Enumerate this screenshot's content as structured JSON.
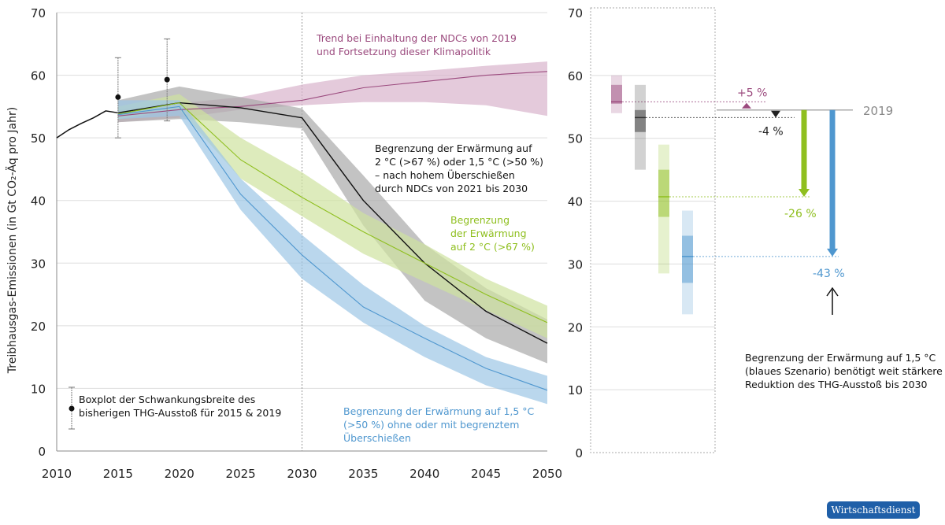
{
  "chart_data": [
    {
      "type": "line",
      "ylabel": "Treibhausgas-Emissionen (in Gt CO₂-Äq pro Jahr)",
      "xlim": [
        2010,
        2050
      ],
      "ylim": [
        0,
        70
      ],
      "xticks": [
        2010,
        2015,
        2020,
        2025,
        2030,
        2035,
        2040,
        2045,
        2050
      ],
      "yticks": [
        0,
        10,
        20,
        30,
        40,
        50,
        60,
        70
      ],
      "grid": "horizontal",
      "vline": 2030,
      "historical": {
        "x": [
          2010,
          2011,
          2012,
          2013,
          2014,
          2015
        ],
        "y": [
          50,
          51.3,
          52.3,
          53.2,
          54.3,
          54.0
        ]
      },
      "series": [
        {
          "key": "ndc",
          "color": "#9b4a7e",
          "band": "#d9b3cc",
          "x": [
            2015,
            2020,
            2025,
            2030,
            2035,
            2040,
            2045,
            2050
          ],
          "median": [
            53.5,
            54.5,
            55,
            56,
            58,
            59,
            60,
            60.6
          ],
          "upper": [
            54.5,
            55.5,
            56.5,
            58.5,
            60,
            60.7,
            61.5,
            62.2
          ],
          "lower": [
            52.5,
            53.2,
            54.5,
            55.2,
            55.7,
            55.7,
            55.2,
            53.5
          ]
        },
        {
          "key": "overshoot",
          "color": "#111111",
          "band": "#a9a9a9",
          "x": [
            2015,
            2020,
            2025,
            2030,
            2035,
            2040,
            2045,
            2050
          ],
          "median": [
            54,
            55.6,
            54.8,
            53.2,
            40,
            30,
            22.3,
            17.2
          ],
          "upper": [
            56,
            58.2,
            56.5,
            54.7,
            44,
            33,
            26,
            21
          ],
          "lower": [
            52.5,
            53,
            52.5,
            51.5,
            36,
            24,
            18,
            14
          ]
        },
        {
          "key": "2c",
          "color": "#8fbf1f",
          "band": "#cfe3a0",
          "x": [
            2015,
            2020,
            2025,
            2030,
            2035,
            2040,
            2045,
            2050
          ],
          "median": [
            53.8,
            55.6,
            46.5,
            40.5,
            35,
            30,
            25,
            20.5
          ],
          "upper": [
            55,
            57,
            50,
            44.5,
            38,
            33,
            27.5,
            23.2
          ],
          "lower": [
            53,
            54.5,
            43.5,
            37.5,
            31.5,
            27,
            22.5,
            18
          ]
        },
        {
          "key": "1_5c",
          "color": "#4f97cf",
          "band": "#9cc6e6",
          "x": [
            2015,
            2020,
            2025,
            2030,
            2035,
            2040,
            2045,
            2050
          ],
          "median": [
            53.7,
            55,
            41,
            31.3,
            23,
            18,
            13.2,
            9.7
          ],
          "upper": [
            56,
            56,
            43.5,
            34.5,
            26.5,
            20,
            15,
            12
          ],
          "lower": [
            53,
            53.5,
            38.5,
            27.5,
            20.5,
            15,
            10.5,
            7.5
          ]
        }
      ],
      "boxplots": [
        {
          "x": 2015,
          "point": 56.5,
          "min": 50,
          "max": 62.8
        },
        {
          "x": 2019,
          "point": 59.3,
          "min": 52.7,
          "max": 65.8
        }
      ]
    },
    {
      "type": "bar",
      "ylim": [
        0,
        70
      ],
      "yticks": [
        0,
        10,
        20,
        30,
        40,
        50,
        60,
        70
      ],
      "reference": {
        "label": "2019",
        "value": 54.5
      },
      "bars": [
        {
          "key": "ndc",
          "color": "#9b4a7e",
          "outer": [
            54,
            60
          ],
          "inner": [
            55.5,
            58.5
          ],
          "median": 55.8,
          "change": "+5 %"
        },
        {
          "key": "overshoot",
          "color": "#333333",
          "outer": [
            45,
            58.5
          ],
          "inner": [
            51,
            54.5
          ],
          "median": 53.3,
          "change": "-4 %"
        },
        {
          "key": "2c",
          "color": "#8fbf1f",
          "outer": [
            28.5,
            49
          ],
          "inner": [
            37.5,
            45
          ],
          "median": 40.7,
          "change": "-26 %"
        },
        {
          "key": "1_5c",
          "color": "#4f97cf",
          "outer": [
            22,
            38.5
          ],
          "inner": [
            27,
            34.5
          ],
          "median": 31.2,
          "change": "-43 %"
        }
      ]
    }
  ],
  "annotations": {
    "ndc": [
      "Trend bei Einhaltung der NDCs von 2019",
      "und Fortsetzung dieser Klimapolitik"
    ],
    "overshoot": [
      "Begrenzung der Erwärmung auf",
      "2 °C (>67 %) oder 1,5 °C (>50 %)",
      "– nach hohem Überschießen",
      "durch NDCs von 2021 bis 2030"
    ],
    "2c": [
      "Begrenzung",
      "der Erwärmung",
      "auf 2 °C (>67 %)"
    ],
    "1_5c": [
      "Begrenzung der Erwärmung auf 1,5 °C",
      "(>50 %) ohne oder mit begrenztem",
      "Überschießen"
    ],
    "boxplot": [
      "Boxplot der Schwankungsbreite des",
      "bisherigen THG-Ausstoß für 2015 & 2019"
    ],
    "right": [
      "Begrenzung der Erwärmung auf 1,5 °C",
      "(blaues Szenario) benötigt weit stärkere",
      "Reduktion des THG-Ausstoß bis 2030"
    ]
  },
  "source": "Wirtschaftsdienst"
}
